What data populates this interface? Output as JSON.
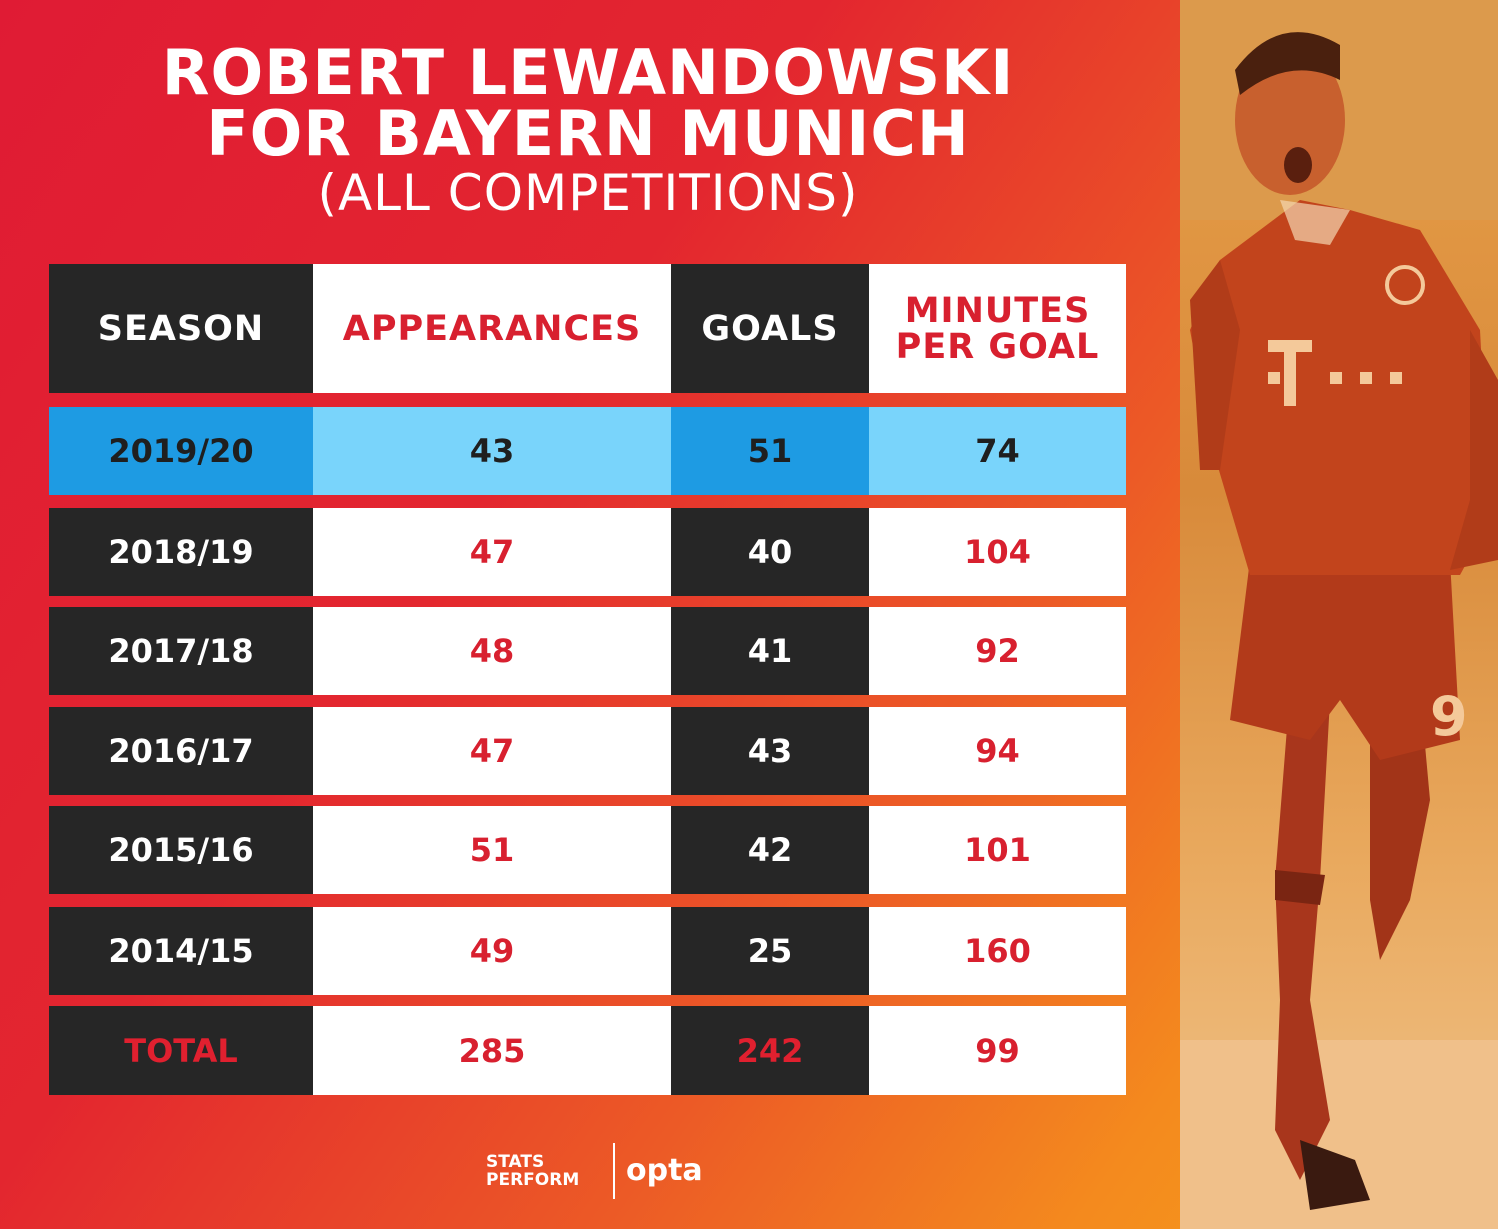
{
  "title": {
    "line1": "ROBERT LEWANDOWSKI",
    "line2": "FOR BAYERN MUNICH",
    "subtitle": "(ALL COMPETITIONS)"
  },
  "table": {
    "headers": {
      "season": "SEASON",
      "appearances": "APPEARANCES",
      "goals": "GOALS",
      "minutes_line1": "MINUTES",
      "minutes_line2": "PER GOAL"
    },
    "rows": [
      {
        "season": "2019/20",
        "appearances": "43",
        "goals": "51",
        "minutes_per_goal": "74"
      },
      {
        "season": "2018/19",
        "appearances": "47",
        "goals": "40",
        "minutes_per_goal": "104"
      },
      {
        "season": "2017/18",
        "appearances": "48",
        "goals": "41",
        "minutes_per_goal": "92"
      },
      {
        "season": "2016/17",
        "appearances": "47",
        "goals": "43",
        "minutes_per_goal": "94"
      },
      {
        "season": "2015/16",
        "appearances": "51",
        "goals": "42",
        "minutes_per_goal": "101"
      },
      {
        "season": "2014/15",
        "appearances": "49",
        "goals": "25",
        "minutes_per_goal": "160"
      }
    ],
    "total": {
      "season": "TOTAL",
      "appearances": "285",
      "goals": "242",
      "minutes_per_goal": "99"
    }
  },
  "logos": {
    "stats_line1": "STATS",
    "stats_line2": "PERFORM",
    "opta": "opta"
  },
  "colors": {
    "background_red": "#e01b34",
    "background_orange": "#f7a119",
    "dark_cell": "#262626",
    "accent_red": "#d8202f",
    "highlight_blue": "#1e9be3",
    "highlight_light_blue": "#79d4fb"
  },
  "photo": {
    "icon": "player-celebration-photo"
  }
}
